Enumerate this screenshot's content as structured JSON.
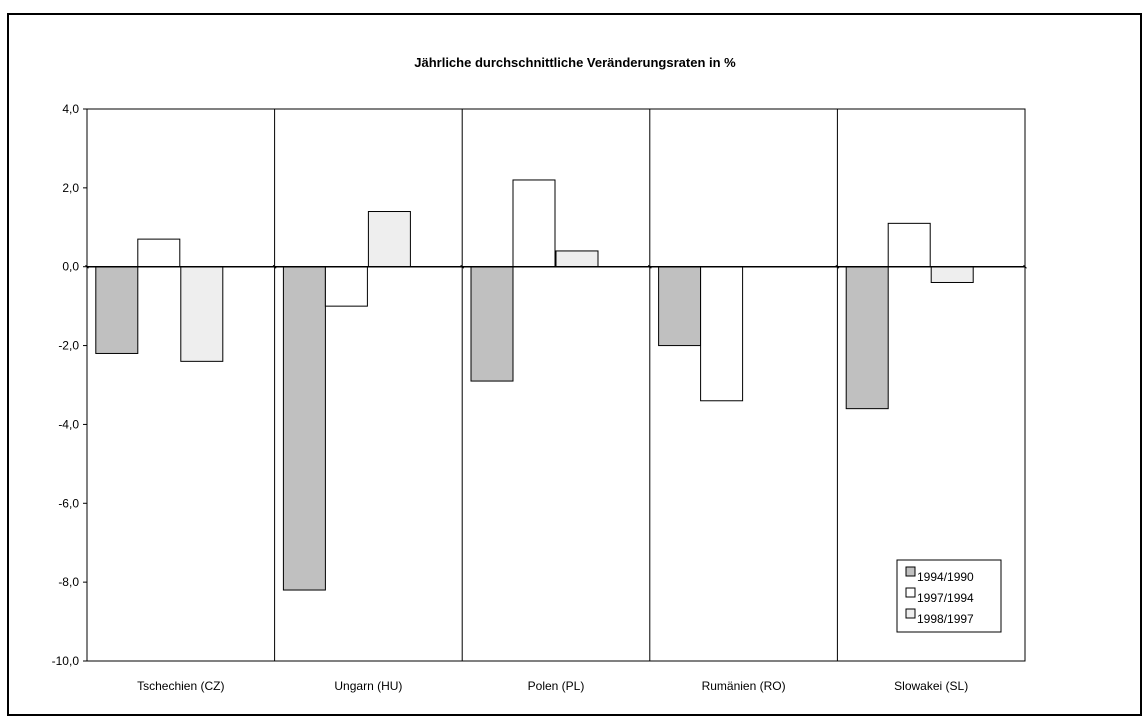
{
  "chart_data": {
    "type": "bar",
    "title": "Jährliche durchschnittliche Veränderungsraten in %",
    "xlabel": "",
    "ylabel": "",
    "categories": [
      "Tschechien (CZ)",
      "Ungarn (HU)",
      "Polen (PL)",
      "Rumänien (RO)",
      "Slowakei (SL)"
    ],
    "series": [
      {
        "name": "1994/1990",
        "values": [
          -2.2,
          -8.2,
          -2.9,
          -2.0,
          -3.6
        ],
        "color": "#c0c0c0"
      },
      {
        "name": "1997/1994",
        "values": [
          0.7,
          -1.0,
          2.2,
          -3.4,
          1.1
        ],
        "color": "#ffffff"
      },
      {
        "name": "1998/1997",
        "values": [
          -2.4,
          1.4,
          0.4,
          null,
          -0.4
        ],
        "color": "#eeeeee"
      }
    ],
    "ylim": [
      -10,
      4
    ],
    "yticks": [
      "4,0",
      "2,0",
      "0,0",
      "-2,0",
      "-4,0",
      "-6,0",
      "-8,0",
      "-10,0"
    ],
    "ytick_values": [
      4,
      2,
      0,
      -2,
      -4,
      -6,
      -8,
      -10
    ],
    "grid": false,
    "legend": "bottom-right"
  }
}
